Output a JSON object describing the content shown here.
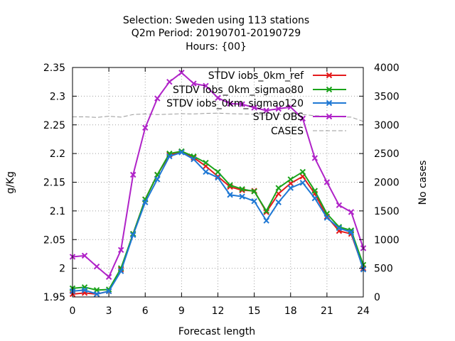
{
  "chart_data": {
    "type": "line",
    "title_lines": [
      "Selection: Sweden using   113 stations",
      "Q2m   Period: 20190701-20190729",
      "Hours: {00}"
    ],
    "xlabel": "Forecast length",
    "ylabel": "g/Kg",
    "y2label": "No cases",
    "xlim": [
      0,
      24
    ],
    "ylim": [
      1.95,
      2.35
    ],
    "y2lim": [
      0,
      4000
    ],
    "xticks": [
      0,
      3,
      6,
      9,
      12,
      15,
      18,
      21,
      24
    ],
    "yticks": [
      1.95,
      2.0,
      2.05,
      2.1,
      2.15,
      2.2,
      2.25,
      2.3,
      2.35
    ],
    "ytick_labels": [
      "1.95",
      "2",
      "2.05",
      "2.1",
      "2.15",
      "2.2",
      "2.25",
      "2.3",
      "2.35"
    ],
    "y2ticks": [
      0,
      500,
      1000,
      1500,
      2000,
      2500,
      3000,
      3500,
      4000
    ],
    "grid": true,
    "legend_position": "top-right",
    "x": [
      0,
      1,
      2,
      3,
      4,
      5,
      6,
      7,
      8,
      9,
      10,
      11,
      12,
      13,
      14,
      15,
      16,
      17,
      18,
      19,
      20,
      21,
      22,
      23,
      24
    ],
    "series": [
      {
        "name": "STDV iobs_0km_ref",
        "color": "#e41a1c",
        "axis": "y",
        "values": [
          1.955,
          1.957,
          1.955,
          1.96,
          1.998,
          2.06,
          2.12,
          2.163,
          2.198,
          2.203,
          2.193,
          2.178,
          2.16,
          2.142,
          2.136,
          2.135,
          2.098,
          2.13,
          2.148,
          2.16,
          2.13,
          2.09,
          2.065,
          2.06,
          2.0
        ]
      },
      {
        "name": "STDV iobs_0km_sigmao80",
        "color": "#1aa31a",
        "axis": "y",
        "values": [
          1.965,
          1.967,
          1.962,
          1.963,
          2.0,
          2.06,
          2.12,
          2.163,
          2.2,
          2.204,
          2.195,
          2.184,
          2.168,
          2.145,
          2.138,
          2.134,
          2.1,
          2.14,
          2.155,
          2.168,
          2.135,
          2.095,
          2.072,
          2.066,
          2.006
        ]
      },
      {
        "name": "STDV iobs_0km_sigmao120",
        "color": "#1f78d4",
        "axis": "y",
        "values": [
          1.96,
          1.962,
          1.955,
          1.96,
          1.995,
          2.058,
          2.115,
          2.155,
          2.195,
          2.202,
          2.19,
          2.168,
          2.158,
          2.128,
          2.125,
          2.117,
          2.083,
          2.115,
          2.14,
          2.149,
          2.122,
          2.088,
          2.07,
          2.063,
          1.998
        ]
      },
      {
        "name": "STDV OBS",
        "color": "#b023c8",
        "axis": "y",
        "values": [
          2.02,
          2.022,
          2.003,
          1.985,
          2.032,
          2.163,
          2.245,
          2.296,
          2.325,
          2.341,
          2.322,
          2.318,
          2.297,
          2.287,
          2.286,
          2.28,
          2.275,
          2.278,
          2.281,
          2.261,
          2.192,
          2.15,
          2.11,
          2.098,
          2.035
        ]
      },
      {
        "name": "CASES",
        "color": "#999999",
        "axis": "y2",
        "dashed": true,
        "values": [
          3140,
          3140,
          3130,
          3150,
          3135,
          3180,
          3190,
          3180,
          3185,
          3195,
          3190,
          3200,
          3205,
          3195,
          3190,
          3185,
          3170,
          3180,
          3185,
          3180,
          3160,
          3150,
          3140,
          3135,
          3060
        ]
      }
    ]
  }
}
